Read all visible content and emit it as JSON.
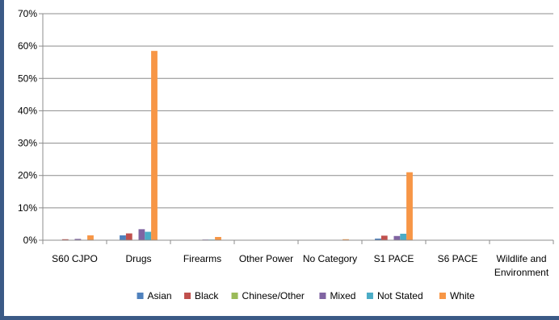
{
  "chart_data": {
    "type": "bar",
    "categories": [
      "S60 CJPO",
      "Drugs",
      "Firearms",
      "Other Power",
      "No Category",
      "S1 PACE",
      "S6 PACE",
      "Wildlife and Environment"
    ],
    "category_lines": [
      [
        "S60 CJPO"
      ],
      [
        "Drugs"
      ],
      [
        "Firearms"
      ],
      [
        "Other Power"
      ],
      [
        "No Category"
      ],
      [
        "S1 PACE"
      ],
      [
        "S6 PACE"
      ],
      [
        "Wildlife and",
        "Environment"
      ]
    ],
    "series": [
      {
        "name": "Asian",
        "color": "#4f81bd",
        "values": [
          0.1,
          1.5,
          0.1,
          0,
          0,
          0.5,
          0,
          0
        ]
      },
      {
        "name": "Black",
        "color": "#c0504d",
        "values": [
          0.3,
          2.1,
          0.1,
          0,
          0,
          1.4,
          0,
          0
        ]
      },
      {
        "name": "Chinese/Other",
        "color": "#9bbb59",
        "values": [
          0,
          0,
          0,
          0,
          0,
          0,
          0,
          0
        ]
      },
      {
        "name": "Mixed",
        "color": "#8064a2",
        "values": [
          0.4,
          3.4,
          0.2,
          0,
          0,
          1.3,
          0,
          0
        ]
      },
      {
        "name": "Not Stated",
        "color": "#4bacc6",
        "values": [
          0.1,
          2.6,
          0.2,
          0,
          0,
          2.0,
          0,
          0
        ]
      },
      {
        "name": "White",
        "color": "#f79646",
        "values": [
          1.5,
          58.5,
          1.0,
          0,
          0.3,
          21.0,
          0,
          0
        ]
      }
    ],
    "y_ticks": [
      "0%",
      "10%",
      "20%",
      "30%",
      "40%",
      "50%",
      "60%",
      "70%"
    ],
    "ylim": [
      0,
      70
    ],
    "grid": true,
    "legend": "bottom"
  }
}
